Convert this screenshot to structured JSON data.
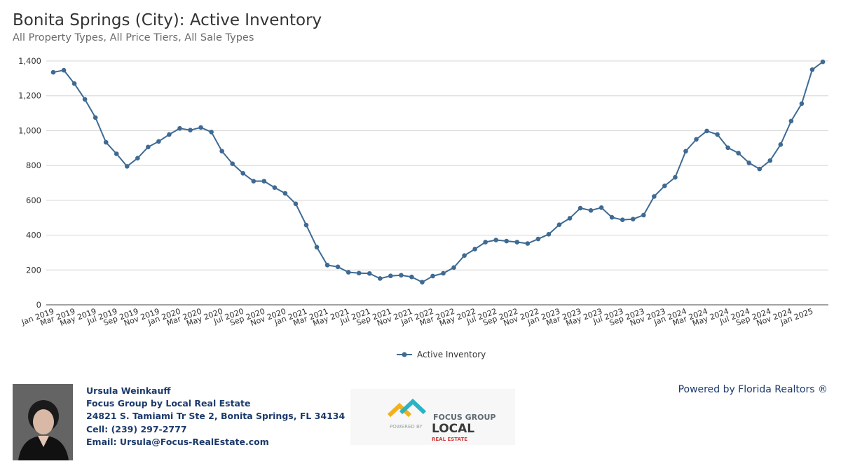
{
  "header": {
    "title": "Bonita Springs (City): Active Inventory",
    "subtitle": "All Property Types, All Price Tiers, All Sale Types"
  },
  "chart_data": {
    "type": "line",
    "title": "Bonita Springs (City): Active Inventory",
    "subtitle": "All Property Types, All Price Tiers, All Sale Types",
    "xlabel": "",
    "ylabel": "",
    "ylim": [
      0,
      1400
    ],
    "yticks": [
      0,
      200,
      400,
      600,
      800,
      1000,
      1200,
      1400
    ],
    "ytick_labels": [
      "0",
      "200",
      "400",
      "600",
      "800",
      "1,000",
      "1,200",
      "1,400"
    ],
    "grid": true,
    "legend_position": "bottom-center",
    "line_color": "#3e6a93",
    "x_tick_labels": [
      "Jan 2019",
      "Mar 2019",
      "May 2019",
      "Jul 2019",
      "Sep 2019",
      "Nov 2019",
      "Jan 2020",
      "Mar 2020",
      "May 2020",
      "Jul 2020",
      "Sep 2020",
      "Nov 2020",
      "Jan 2021",
      "Mar 2021",
      "May 2021",
      "Jul 2021",
      "Sep 2021",
      "Nov 2021",
      "Jan 2022",
      "Mar 2022",
      "May 2022",
      "Jul 2022",
      "Sep 2022",
      "Nov 2022",
      "Jan 2023",
      "Mar 2023",
      "May 2023",
      "Jul 2023",
      "Sep 2023",
      "Nov 2023",
      "Jan 2024",
      "Mar 2024",
      "May 2024",
      "Jul 2024",
      "Sep 2024",
      "Nov 2024",
      "Jan 2025"
    ],
    "x": [
      "Jan 2019",
      "Feb 2019",
      "Mar 2019",
      "Apr 2019",
      "May 2019",
      "Jun 2019",
      "Jul 2019",
      "Aug 2019",
      "Sep 2019",
      "Oct 2019",
      "Nov 2019",
      "Dec 2019",
      "Jan 2020",
      "Feb 2020",
      "Mar 2020",
      "Apr 2020",
      "May 2020",
      "Jun 2020",
      "Jul 2020",
      "Aug 2020",
      "Sep 2020",
      "Oct 2020",
      "Nov 2020",
      "Dec 2020",
      "Jan 2021",
      "Feb 2021",
      "Mar 2021",
      "Apr 2021",
      "May 2021",
      "Jun 2021",
      "Jul 2021",
      "Aug 2021",
      "Sep 2021",
      "Oct 2021",
      "Nov 2021",
      "Dec 2021",
      "Jan 2022",
      "Feb 2022",
      "Mar 2022",
      "Apr 2022",
      "May 2022",
      "Jun 2022",
      "Jul 2022",
      "Aug 2022",
      "Sep 2022",
      "Oct 2022",
      "Nov 2022",
      "Dec 2022",
      "Jan 2023",
      "Feb 2023",
      "Mar 2023",
      "Apr 2023",
      "May 2023",
      "Jun 2023",
      "Jul 2023",
      "Aug 2023",
      "Sep 2023",
      "Oct 2023",
      "Nov 2023",
      "Dec 2023",
      "Jan 2024",
      "Feb 2024",
      "Mar 2024",
      "Apr 2024",
      "May 2024",
      "Jun 2024",
      "Jul 2024",
      "Aug 2024",
      "Sep 2024",
      "Oct 2024",
      "Nov 2024",
      "Dec 2024",
      "Jan 2025",
      "Feb 2025"
    ],
    "series": [
      {
        "name": "Active Inventory",
        "values": [
          1335,
          1347,
          1270,
          1180,
          1075,
          933,
          867,
          795,
          842,
          906,
          938,
          978,
          1013,
          1003,
          1018,
          992,
          882,
          810,
          755,
          710,
          710,
          673,
          640,
          580,
          458,
          331,
          228,
          218,
          187,
          182,
          180,
          151,
          166,
          170,
          160,
          130,
          165,
          181,
          214,
          283,
          320,
          360,
          372,
          366,
          360,
          352,
          378,
          405,
          460,
          497,
          555,
          542,
          558,
          502,
          488,
          492,
          515,
          622,
          683,
          732,
          882,
          950,
          998,
          978,
          902,
          871,
          815,
          780,
          828,
          920,
          1055,
          1155,
          1350,
          1395
        ]
      }
    ]
  },
  "legend": {
    "label": "Active Inventory"
  },
  "footer": {
    "agent_name": "Ursula Weinkauff",
    "company": "Focus Group by Local Real Estate",
    "address": "24821 S. Tamiami Tr Ste 2, Bonita Springs, FL 34134",
    "cell": "Cell: (239) 297-2777",
    "email": "Email: Ursula@Focus-RealEstate.com",
    "powered_by": "Powered by Florida Realtors ®",
    "logo_text_1": "FOCUS GROUP",
    "logo_text_2": "POWERED BY",
    "logo_text_3": "LOCAL",
    "logo_text_4": "REAL ESTATE"
  }
}
